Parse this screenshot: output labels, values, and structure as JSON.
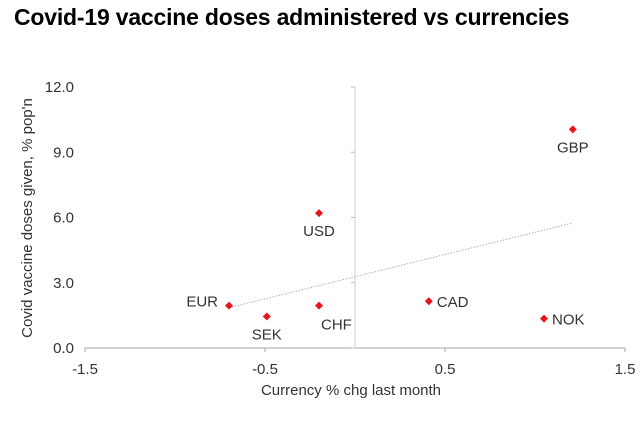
{
  "chart_data": {
    "type": "scatter",
    "title": "Covid-19 vaccine doses administered vs currencies",
    "xlabel": "Currency % chg last month",
    "ylabel": "Covid vaccine doses given, % pop'n",
    "xlim": [
      -1.5,
      1.5
    ],
    "ylim": [
      0,
      12
    ],
    "x_ticks": [
      "-1.5",
      "-0.5",
      "0.5",
      "1.5"
    ],
    "x_tick_values": [
      -1.5,
      -0.5,
      0.5,
      1.5
    ],
    "y_ticks": [
      "0.0",
      "3.0",
      "6.0",
      "9.0",
      "12.0"
    ],
    "y_tick_values": [
      0,
      3,
      6,
      9,
      12
    ],
    "marker_color": "#e8141c",
    "trendline_color": "#b0b0b0",
    "points": [
      {
        "label": "EUR",
        "x": -0.7,
        "y": 1.95,
        "label_pos": "left"
      },
      {
        "label": "SEK",
        "x": -0.49,
        "y": 1.45,
        "label_pos": "below"
      },
      {
        "label": "USD",
        "x": -0.2,
        "y": 6.2,
        "label_pos": "below"
      },
      {
        "label": "CHF",
        "x": -0.2,
        "y": 1.95,
        "label_pos": "below-right"
      },
      {
        "label": "CAD",
        "x": 0.41,
        "y": 2.15,
        "label_pos": "right"
      },
      {
        "label": "NOK",
        "x": 1.05,
        "y": 1.35,
        "label_pos": "right"
      },
      {
        "label": "GBP",
        "x": 1.21,
        "y": 10.05,
        "label_pos": "below"
      }
    ],
    "trendline": {
      "x_start": -0.7,
      "y_start": 1.85,
      "x_end": 1.21,
      "y_end": 5.75
    }
  }
}
